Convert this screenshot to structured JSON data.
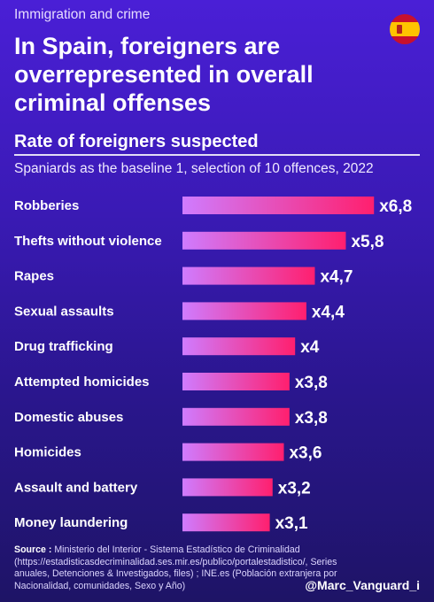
{
  "header": {
    "kicker": "Immigration and crime",
    "title": "In Spain, foreigners are overrepresented in overall criminal offenses",
    "flag_icon": "spain-flag-icon"
  },
  "chart_data": {
    "type": "bar",
    "orientation": "horizontal",
    "title": "Rate of foreigners suspected",
    "subtitle": "Spaniards as the baseline 1, selection of 10 offences, 2022",
    "categories": [
      "Robberies",
      "Thefts without violence",
      "Rapes",
      "Sexual assaults",
      "Drug trafficking",
      "Attempted homicides",
      "Domestic abuses",
      "Homicides",
      "Assault and battery",
      "Money laundering"
    ],
    "values": [
      6.8,
      5.8,
      4.7,
      4.4,
      4.0,
      3.8,
      3.8,
      3.6,
      3.2,
      3.1
    ],
    "value_labels": [
      "x6,8",
      "x5,8",
      "x4,7",
      "x4,4",
      "x4",
      "x3,8",
      "x3,8",
      "x3,6",
      "x3,2",
      "x3,1"
    ],
    "gradient": [
      "#cf7cff",
      "#ff1f6e"
    ],
    "grid": false,
    "legend": "none"
  },
  "footer": {
    "source_label": "Source :",
    "source_text": " Ministerio del Interior - Sistema Estadístico de Criminalidad (https://estadisticasdecriminalidad.ses.mir.es/publico/portalestadistico/, Series anuales, Detenciones & Investigados, files) ; INE.es (Población extranjera por Nacionalidad, comunidades, Sexo y Año)",
    "handle": "@Marc_Vanguard_i"
  }
}
